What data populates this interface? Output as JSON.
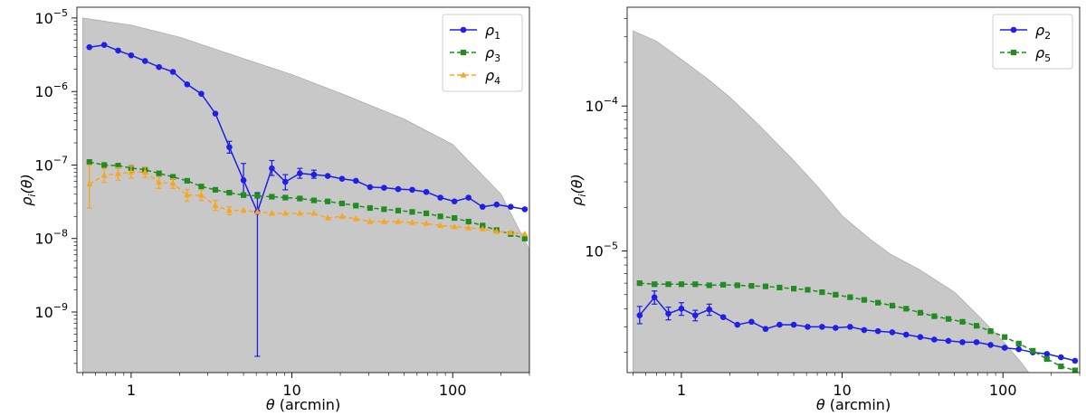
{
  "chart_data": [
    {
      "type": "line",
      "xlabel": "θ (arcmin)",
      "ylabel": "ρ_i(θ)",
      "xscale": "log",
      "yscale": "log",
      "xlim": [
        0.46,
        300
      ],
      "ylim": [
        1.5e-10,
        1.4e-05
      ],
      "xticks": [
        {
          "value": 1,
          "label": "1"
        },
        {
          "value": 10,
          "label": "10"
        },
        {
          "value": 100,
          "label": "100"
        }
      ],
      "yticks": [
        {
          "value": 1e-09,
          "base": "10",
          "exp": "−9"
        },
        {
          "value": 1e-08,
          "base": "10",
          "exp": "−8"
        },
        {
          "value": 1e-07,
          "base": "10",
          "exp": "−7"
        },
        {
          "value": 1e-06,
          "base": "10",
          "exp": "−6"
        },
        {
          "value": 1e-05,
          "base": "10",
          "exp": "−5"
        }
      ],
      "legend_position": "top-right",
      "shaded_band": {
        "color": "#c8c8c8",
        "x": [
          0.5,
          1,
          2,
          5,
          10,
          20,
          50,
          100,
          200,
          300
        ],
        "upper": [
          1e-05,
          8e-06,
          5.5e-06,
          2.8e-06,
          1.7e-06,
          9.5e-07,
          4.2e-07,
          1.9e-07,
          4e-08,
          7e-09
        ]
      },
      "series": [
        {
          "name_base": "ρ",
          "name_sub": "1",
          "color": "#1f1fe8",
          "marker": "circle",
          "dashed": false,
          "x": [
            0.55,
            0.68,
            0.83,
            1.0,
            1.22,
            1.49,
            1.82,
            2.23,
            2.73,
            3.34,
            4.08,
            5.0,
            6.1,
            7.5,
            9.1,
            11.2,
            13.7,
            16.7,
            20.5,
            25.0,
            30.6,
            37.4,
            45.8,
            56.0,
            68.5,
            83.8,
            102.5,
            125.4,
            153.4,
            187.6,
            229.5,
            280.7
          ],
          "y": [
            4e-06,
            4.3e-06,
            3.6e-06,
            3.1e-06,
            2.6e-06,
            2.15e-06,
            1.85e-06,
            1.25e-06,
            9.3e-07,
            5e-07,
            1.75e-07,
            6.2e-08,
            2.3e-08,
            9e-08,
            5.9e-08,
            7.7e-08,
            7.4e-08,
            7.1e-08,
            6.5e-08,
            6.1e-08,
            5e-08,
            4.9e-08,
            4.7e-08,
            4.6e-08,
            4.3e-08,
            3.6e-08,
            3.2e-08,
            3.6e-08,
            2.7e-08,
            2.9e-08,
            2.7e-08,
            2.5e-08
          ],
          "err_lo": [
            null,
            null,
            null,
            null,
            null,
            null,
            null,
            null,
            null,
            null,
            1.45e-07,
            4e-08,
            2.5e-10,
            7.2e-08,
            4.6e-08,
            6.6e-08,
            6.6e-08,
            null,
            null,
            null,
            null,
            null,
            null,
            null,
            null,
            null,
            null,
            null,
            null,
            null,
            null,
            null
          ],
          "err_hi": [
            null,
            null,
            null,
            null,
            null,
            null,
            null,
            null,
            null,
            null,
            2.1e-07,
            1.05e-07,
            4.2e-08,
            1.15e-07,
            7.4e-08,
            9e-08,
            8.5e-08,
            null,
            null,
            null,
            null,
            null,
            null,
            null,
            null,
            null,
            null,
            null,
            null,
            null,
            null,
            null
          ]
        },
        {
          "name_base": "ρ",
          "name_sub": "3",
          "color": "#228b22",
          "marker": "square",
          "dashed": true,
          "x": [
            0.55,
            0.68,
            0.83,
            1.0,
            1.22,
            1.49,
            1.82,
            2.23,
            2.73,
            3.34,
            4.08,
            5.0,
            6.1,
            7.5,
            9.1,
            11.2,
            13.7,
            16.7,
            20.5,
            25.0,
            30.6,
            37.4,
            45.8,
            56.0,
            68.5,
            83.8,
            102.5,
            125.4,
            153.4,
            187.6,
            229.5,
            280.7
          ],
          "y": [
            1.1e-07,
            1e-07,
            9.8e-08,
            9.1e-08,
            8.6e-08,
            7.7e-08,
            6.9e-08,
            6.1e-08,
            5.1e-08,
            4.6e-08,
            4.2e-08,
            3.9e-08,
            3.8e-08,
            3.7e-08,
            3.6e-08,
            3.5e-08,
            3.3e-08,
            3.2e-08,
            3e-08,
            2.8e-08,
            2.6e-08,
            2.5e-08,
            2.4e-08,
            2.3e-08,
            2.2e-08,
            2e-08,
            1.9e-08,
            1.7e-08,
            1.5e-08,
            1.3e-08,
            1.15e-08,
            1e-08
          ],
          "err_lo": [],
          "err_hi": []
        },
        {
          "name_base": "ρ",
          "name_sub": "4",
          "color": "#f5a623",
          "marker": "triangle",
          "dashed": true,
          "x": [
            0.55,
            0.68,
            0.83,
            1.0,
            1.22,
            1.49,
            1.82,
            2.23,
            2.73,
            3.34,
            4.08,
            5.0,
            6.1,
            7.5,
            9.1,
            11.2,
            13.7,
            16.7,
            20.5,
            25.0,
            30.6,
            37.4,
            45.8,
            56.0,
            68.5,
            83.8,
            102.5,
            125.4,
            153.4,
            187.6,
            229.5,
            280.7
          ],
          "y": [
            5.5e-08,
            7.2e-08,
            7.6e-08,
            8e-08,
            8e-08,
            5.8e-08,
            5.6e-08,
            3.9e-08,
            3.9e-08,
            2.8e-08,
            2.4e-08,
            2.4e-08,
            2.3e-08,
            2.2e-08,
            2.2e-08,
            2.2e-08,
            2.2e-08,
            1.9e-08,
            2e-08,
            1.85e-08,
            1.7e-08,
            1.7e-08,
            1.7e-08,
            1.65e-08,
            1.6e-08,
            1.5e-08,
            1.45e-08,
            1.4e-08,
            1.35e-08,
            1.25e-08,
            1.2e-08,
            1.15e-08
          ],
          "err_lo": [
            2.6e-08,
            5.8e-08,
            6.2e-08,
            6.6e-08,
            6.8e-08,
            4.8e-08,
            4.8e-08,
            3.2e-08,
            3.3e-08,
            2.4e-08,
            2.1e-08,
            null,
            null,
            null,
            null,
            null,
            null,
            null,
            null,
            null,
            null,
            null,
            null,
            null,
            null,
            null,
            null,
            null,
            null,
            null,
            null,
            null
          ],
          "err_hi": [
            1e-07,
            9e-08,
            9.2e-08,
            9.6e-08,
            9.4e-08,
            6.9e-08,
            6.5e-08,
            4.6e-08,
            4.6e-08,
            3.3e-08,
            2.7e-08,
            null,
            null,
            null,
            null,
            null,
            null,
            null,
            null,
            null,
            null,
            null,
            null,
            null,
            null,
            null,
            null,
            null,
            null,
            null,
            null,
            null
          ]
        }
      ]
    },
    {
      "type": "line",
      "xlabel": "θ (arcmin)",
      "ylabel": "ρ_i(θ)",
      "xscale": "log",
      "yscale": "log",
      "xlim": [
        0.46,
        300
      ],
      "ylim": [
        1.45e-06,
        0.00048
      ],
      "xticks": [
        {
          "value": 1,
          "label": "1"
        },
        {
          "value": 10,
          "label": "10"
        },
        {
          "value": 100,
          "label": "100"
        }
      ],
      "yticks": [
        {
          "value": 1e-05,
          "base": "10",
          "exp": "−5"
        },
        {
          "value": 0.0001,
          "base": "10",
          "exp": "−4"
        }
      ],
      "legend_position": "top-right",
      "shaded_band": {
        "color": "#c8c8c8",
        "x": [
          0.5,
          0.7,
          1,
          1.5,
          2,
          3,
          5,
          7,
          10,
          15,
          20,
          30,
          50,
          70,
          100,
          130,
          145
        ],
        "upper": [
          0.00033,
          0.00028,
          0.00021,
          0.00015,
          0.000115,
          7.5e-05,
          4.2e-05,
          2.8e-05,
          1.75e-05,
          1.2e-05,
          9.5e-06,
          7.5e-06,
          5.2e-06,
          3.6e-06,
          2.4e-06,
          1.7e-06,
          1.45e-06
        ]
      },
      "series": [
        {
          "name_base": "ρ",
          "name_sub": "2",
          "color": "#1f1fe8",
          "marker": "circle",
          "dashed": false,
          "x": [
            0.55,
            0.68,
            0.83,
            1.0,
            1.22,
            1.49,
            1.82,
            2.23,
            2.73,
            3.34,
            4.08,
            5.0,
            6.1,
            7.5,
            9.1,
            11.2,
            13.7,
            16.7,
            20.5,
            25.0,
            30.6,
            37.4,
            45.8,
            56.0,
            68.5,
            83.8,
            102.5,
            125.4,
            153.4,
            187.6,
            229.5,
            280.7
          ],
          "y": [
            3.6e-06,
            4.8e-06,
            3.7e-06,
            4e-06,
            3.6e-06,
            3.95e-06,
            3.5e-06,
            3.1e-06,
            3.25e-06,
            2.9e-06,
            3.1e-06,
            3.1e-06,
            3e-06,
            3e-06,
            2.95e-06,
            3e-06,
            2.85e-06,
            2.8e-06,
            2.75e-06,
            2.65e-06,
            2.55e-06,
            2.45e-06,
            2.4e-06,
            2.35e-06,
            2.35e-06,
            2.25e-06,
            2.15e-06,
            2.1e-06,
            2e-06,
            1.95e-06,
            1.85e-06,
            1.75e-06
          ],
          "err_lo": [
            3.15e-06,
            4.3e-06,
            3.35e-06,
            3.6e-06,
            3.3e-06,
            3.6e-06,
            null,
            null,
            null,
            null,
            null,
            null,
            null,
            null,
            null,
            null,
            null,
            null,
            null,
            null,
            null,
            null,
            null,
            null,
            null,
            null,
            null,
            null,
            null,
            null,
            null,
            null
          ],
          "err_hi": [
            4.15e-06,
            5.3e-06,
            4.1e-06,
            4.4e-06,
            3.9e-06,
            4.3e-06,
            null,
            null,
            null,
            null,
            null,
            null,
            null,
            null,
            null,
            null,
            null,
            null,
            null,
            null,
            null,
            null,
            null,
            null,
            null,
            null,
            null,
            null,
            null,
            null,
            null,
            null
          ]
        },
        {
          "name_base": "ρ",
          "name_sub": "5",
          "color": "#228b22",
          "marker": "square",
          "dashed": true,
          "x": [
            0.55,
            0.68,
            0.83,
            1.0,
            1.22,
            1.49,
            1.82,
            2.23,
            2.73,
            3.34,
            4.08,
            5.0,
            6.1,
            7.5,
            9.1,
            11.2,
            13.7,
            16.7,
            20.5,
            25.0,
            30.6,
            37.4,
            45.8,
            56.0,
            68.5,
            83.8,
            102.5,
            125.4,
            153.4,
            187.6,
            229.5,
            280.7
          ],
          "y": [
            6e-06,
            5.9e-06,
            5.9e-06,
            5.9e-06,
            5.9e-06,
            5.8e-06,
            5.85e-06,
            5.8e-06,
            5.75e-06,
            5.7e-06,
            5.6e-06,
            5.5e-06,
            5.4e-06,
            5.2e-06,
            5e-06,
            4.8e-06,
            4.6e-06,
            4.4e-06,
            4.2e-06,
            4e-06,
            3.75e-06,
            3.55e-06,
            3.4e-06,
            3.25e-06,
            3.05e-06,
            2.8e-06,
            2.55e-06,
            2.3e-06,
            2.05e-06,
            1.8e-06,
            1.6e-06,
            1.5e-06
          ],
          "err_lo": [],
          "err_hi": []
        }
      ]
    }
  ]
}
